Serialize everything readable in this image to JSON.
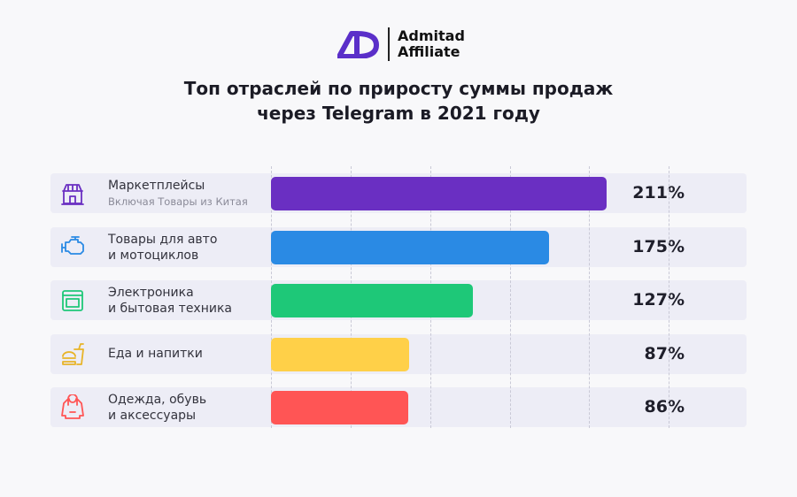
{
  "logo": {
    "line1": "Admitad",
    "line2": "Affiliate",
    "color": "#5b2fc9"
  },
  "chart_data": {
    "type": "bar",
    "orientation": "horizontal",
    "title_line1": "Топ отраслей по приросту суммы продаж",
    "title_line2": "через Telegram в 2021 году",
    "xlim": [
      0,
      250
    ],
    "grid_values": [
      0,
      50,
      100,
      150,
      200,
      250
    ],
    "categories": [
      {
        "label1": "Маркетплейсы",
        "label2": "Включая Товары из Китая",
        "sub": true,
        "icon": "store-icon",
        "color": "#6a2fc2"
      },
      {
        "label1": "Товары для авто",
        "label2": "и мотоциклов",
        "sub": false,
        "icon": "engine-icon",
        "color": "#2a8ae4"
      },
      {
        "label1": "Электроника",
        "label2": "и бытовая техника",
        "sub": false,
        "icon": "oven-icon",
        "color": "#1ec878"
      },
      {
        "label1": "Еда и напитки",
        "label2": "",
        "sub": false,
        "icon": "food-icon",
        "color": "#ffd048"
      },
      {
        "label1": "Одежда, обувь",
        "label2": "и аксессуары",
        "sub": false,
        "icon": "hoodie-icon",
        "color": "#ff5555"
      }
    ],
    "values": [
      211,
      175,
      127,
      87,
      86
    ],
    "value_labels": [
      "211%",
      "175%",
      "127%",
      "87%",
      "86%"
    ]
  }
}
